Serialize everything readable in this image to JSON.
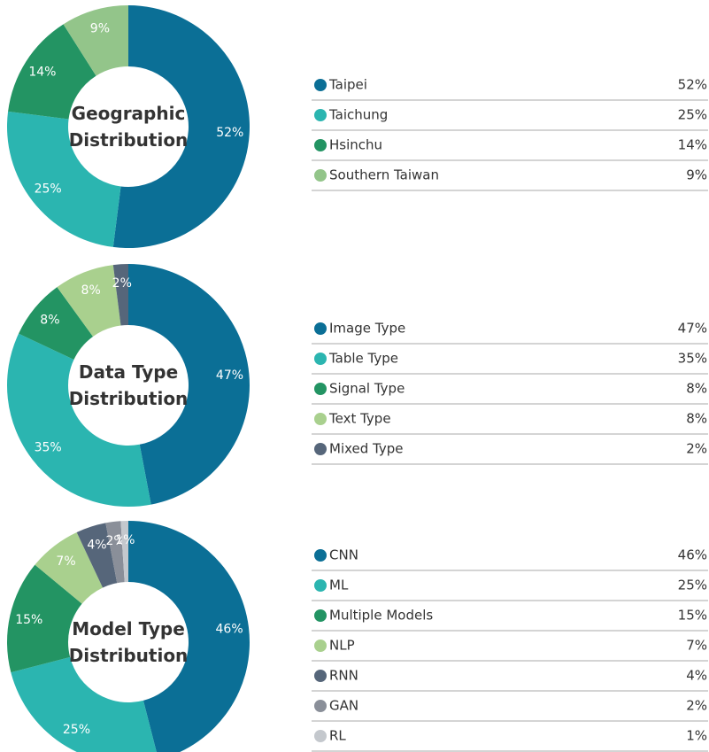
{
  "chart_data": [
    {
      "type": "pie",
      "title": "Geographic Distribution",
      "categories": [
        "Taipei",
        "Taichung",
        "Hsinchu",
        "Southern Taiwan"
      ],
      "values": [
        52,
        25,
        14,
        9
      ],
      "value_labels": [
        "52%",
        "25%",
        "14%",
        "9%"
      ],
      "colors": [
        "#0b6f96",
        "#2bb5b0",
        "#239463",
        "#93c58a"
      ]
    },
    {
      "type": "pie",
      "title": "Data Type Distribution",
      "categories": [
        "Image Type",
        "Table Type",
        "Signal Type",
        "Text Type",
        "Mixed Type"
      ],
      "values": [
        47,
        35,
        8,
        8,
        2
      ],
      "value_labels": [
        "47%",
        "35%",
        "8%",
        "8%",
        "2%"
      ],
      "colors": [
        "#0b6f96",
        "#2bb5b0",
        "#239463",
        "#a9d08e",
        "#56667a"
      ]
    },
    {
      "type": "pie",
      "title": "Model Type Distribution",
      "categories": [
        "CNN",
        "ML",
        "Multiple Models",
        "NLP",
        "RNN",
        "GAN",
        "RL"
      ],
      "values": [
        46,
        25,
        15,
        7,
        4,
        2,
        1
      ],
      "value_labels": [
        "46%",
        "25%",
        "15%",
        "7%",
        "4%",
        "2%",
        "1%"
      ],
      "colors": [
        "#0b6f96",
        "#2bb5b0",
        "#239463",
        "#a9d08e",
        "#56667a",
        "#8a8f99",
        "#c4c8cd"
      ]
    }
  ]
}
